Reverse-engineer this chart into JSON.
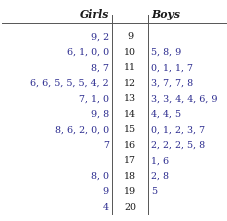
{
  "title_left": "Girls",
  "title_right": "Boys",
  "stems": [
    "9",
    "10",
    "11",
    "12",
    "13",
    "14",
    "15",
    "16",
    "17",
    "18",
    "19",
    "20"
  ],
  "left_leaves": [
    "9, 2",
    "6, 1, 0, 0",
    "8, 7",
    "6, 6, 5, 5, 5, 4, 2",
    "7, 1, 0",
    "9, 8",
    "8, 6, 2, 0, 0",
    "7",
    "",
    "8, 0",
    "9",
    "4"
  ],
  "right_leaves": [
    "",
    "5, 8, 9",
    "0, 1, 1, 7",
    "3, 7, 7, 8",
    "3, 3, 4, 4, 6, 9",
    "4, 4, 5",
    "0, 1, 2, 3, 7",
    "2, 2, 2, 5, 8",
    "1, 6",
    "2, 8",
    "5",
    ""
  ],
  "bg_color": "#ffffff",
  "leaf_color": "#2b2b8f",
  "stem_color": "#1a1a1a",
  "header_color": "#1a1a1a",
  "line_color": "#555555",
  "font_size": 6.8,
  "header_font_size": 7.8,
  "fig_width": 2.28,
  "fig_height": 2.21,
  "dpi": 100
}
